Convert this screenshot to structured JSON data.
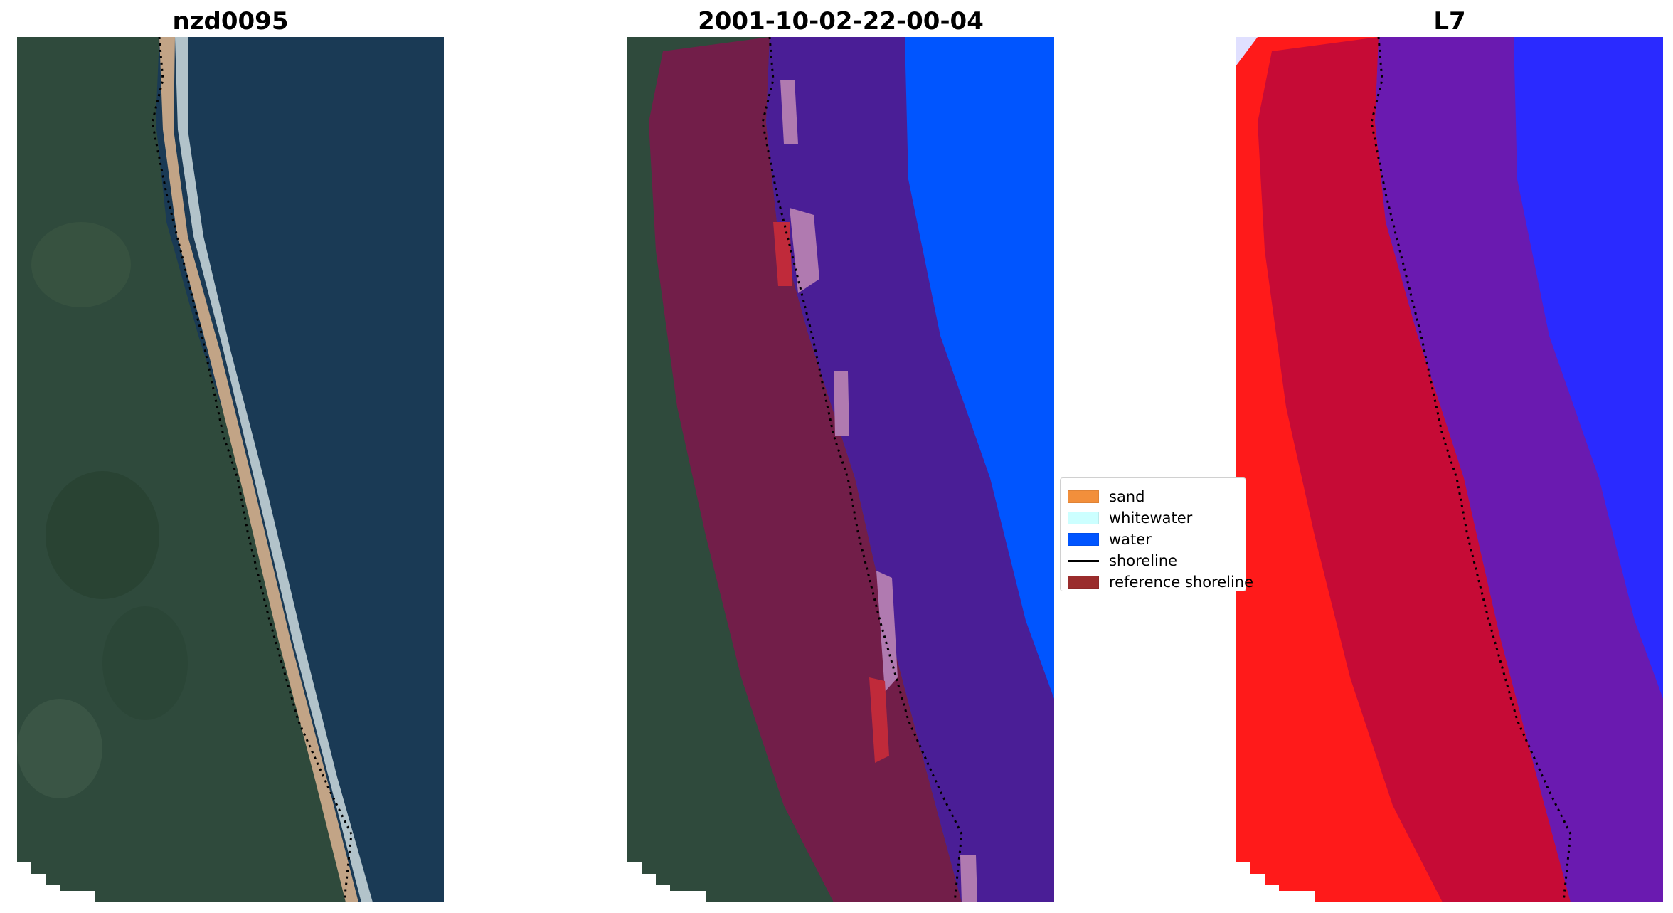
{
  "panels": [
    {
      "title": "nzd0095"
    },
    {
      "title": "2001-10-02-22-00-04"
    },
    {
      "title": "L7"
    }
  ],
  "legend": {
    "items": [
      {
        "label": "sand",
        "color": "#f28f3b",
        "kind": "patch"
      },
      {
        "label": "whitewater",
        "color": "#ccffff",
        "kind": "patch"
      },
      {
        "label": "water",
        "color": "#0055ff",
        "kind": "patch"
      },
      {
        "label": "shoreline",
        "color": "#000000",
        "kind": "line"
      },
      {
        "label": "reference shoreline",
        "color": "#9a2c2c",
        "kind": "patch"
      }
    ]
  },
  "colors": {
    "land": "#2f4a3c",
    "ocean": "#1a3a55",
    "beach": "#c2a486",
    "surf": "#e6f2f2",
    "reference_buffer": "#8a1a3a",
    "water_class": "#0055ff",
    "buffer_over_water": "#4a1e96",
    "index_land": "#ff1a1a",
    "index_water": "#2a2aff"
  }
}
